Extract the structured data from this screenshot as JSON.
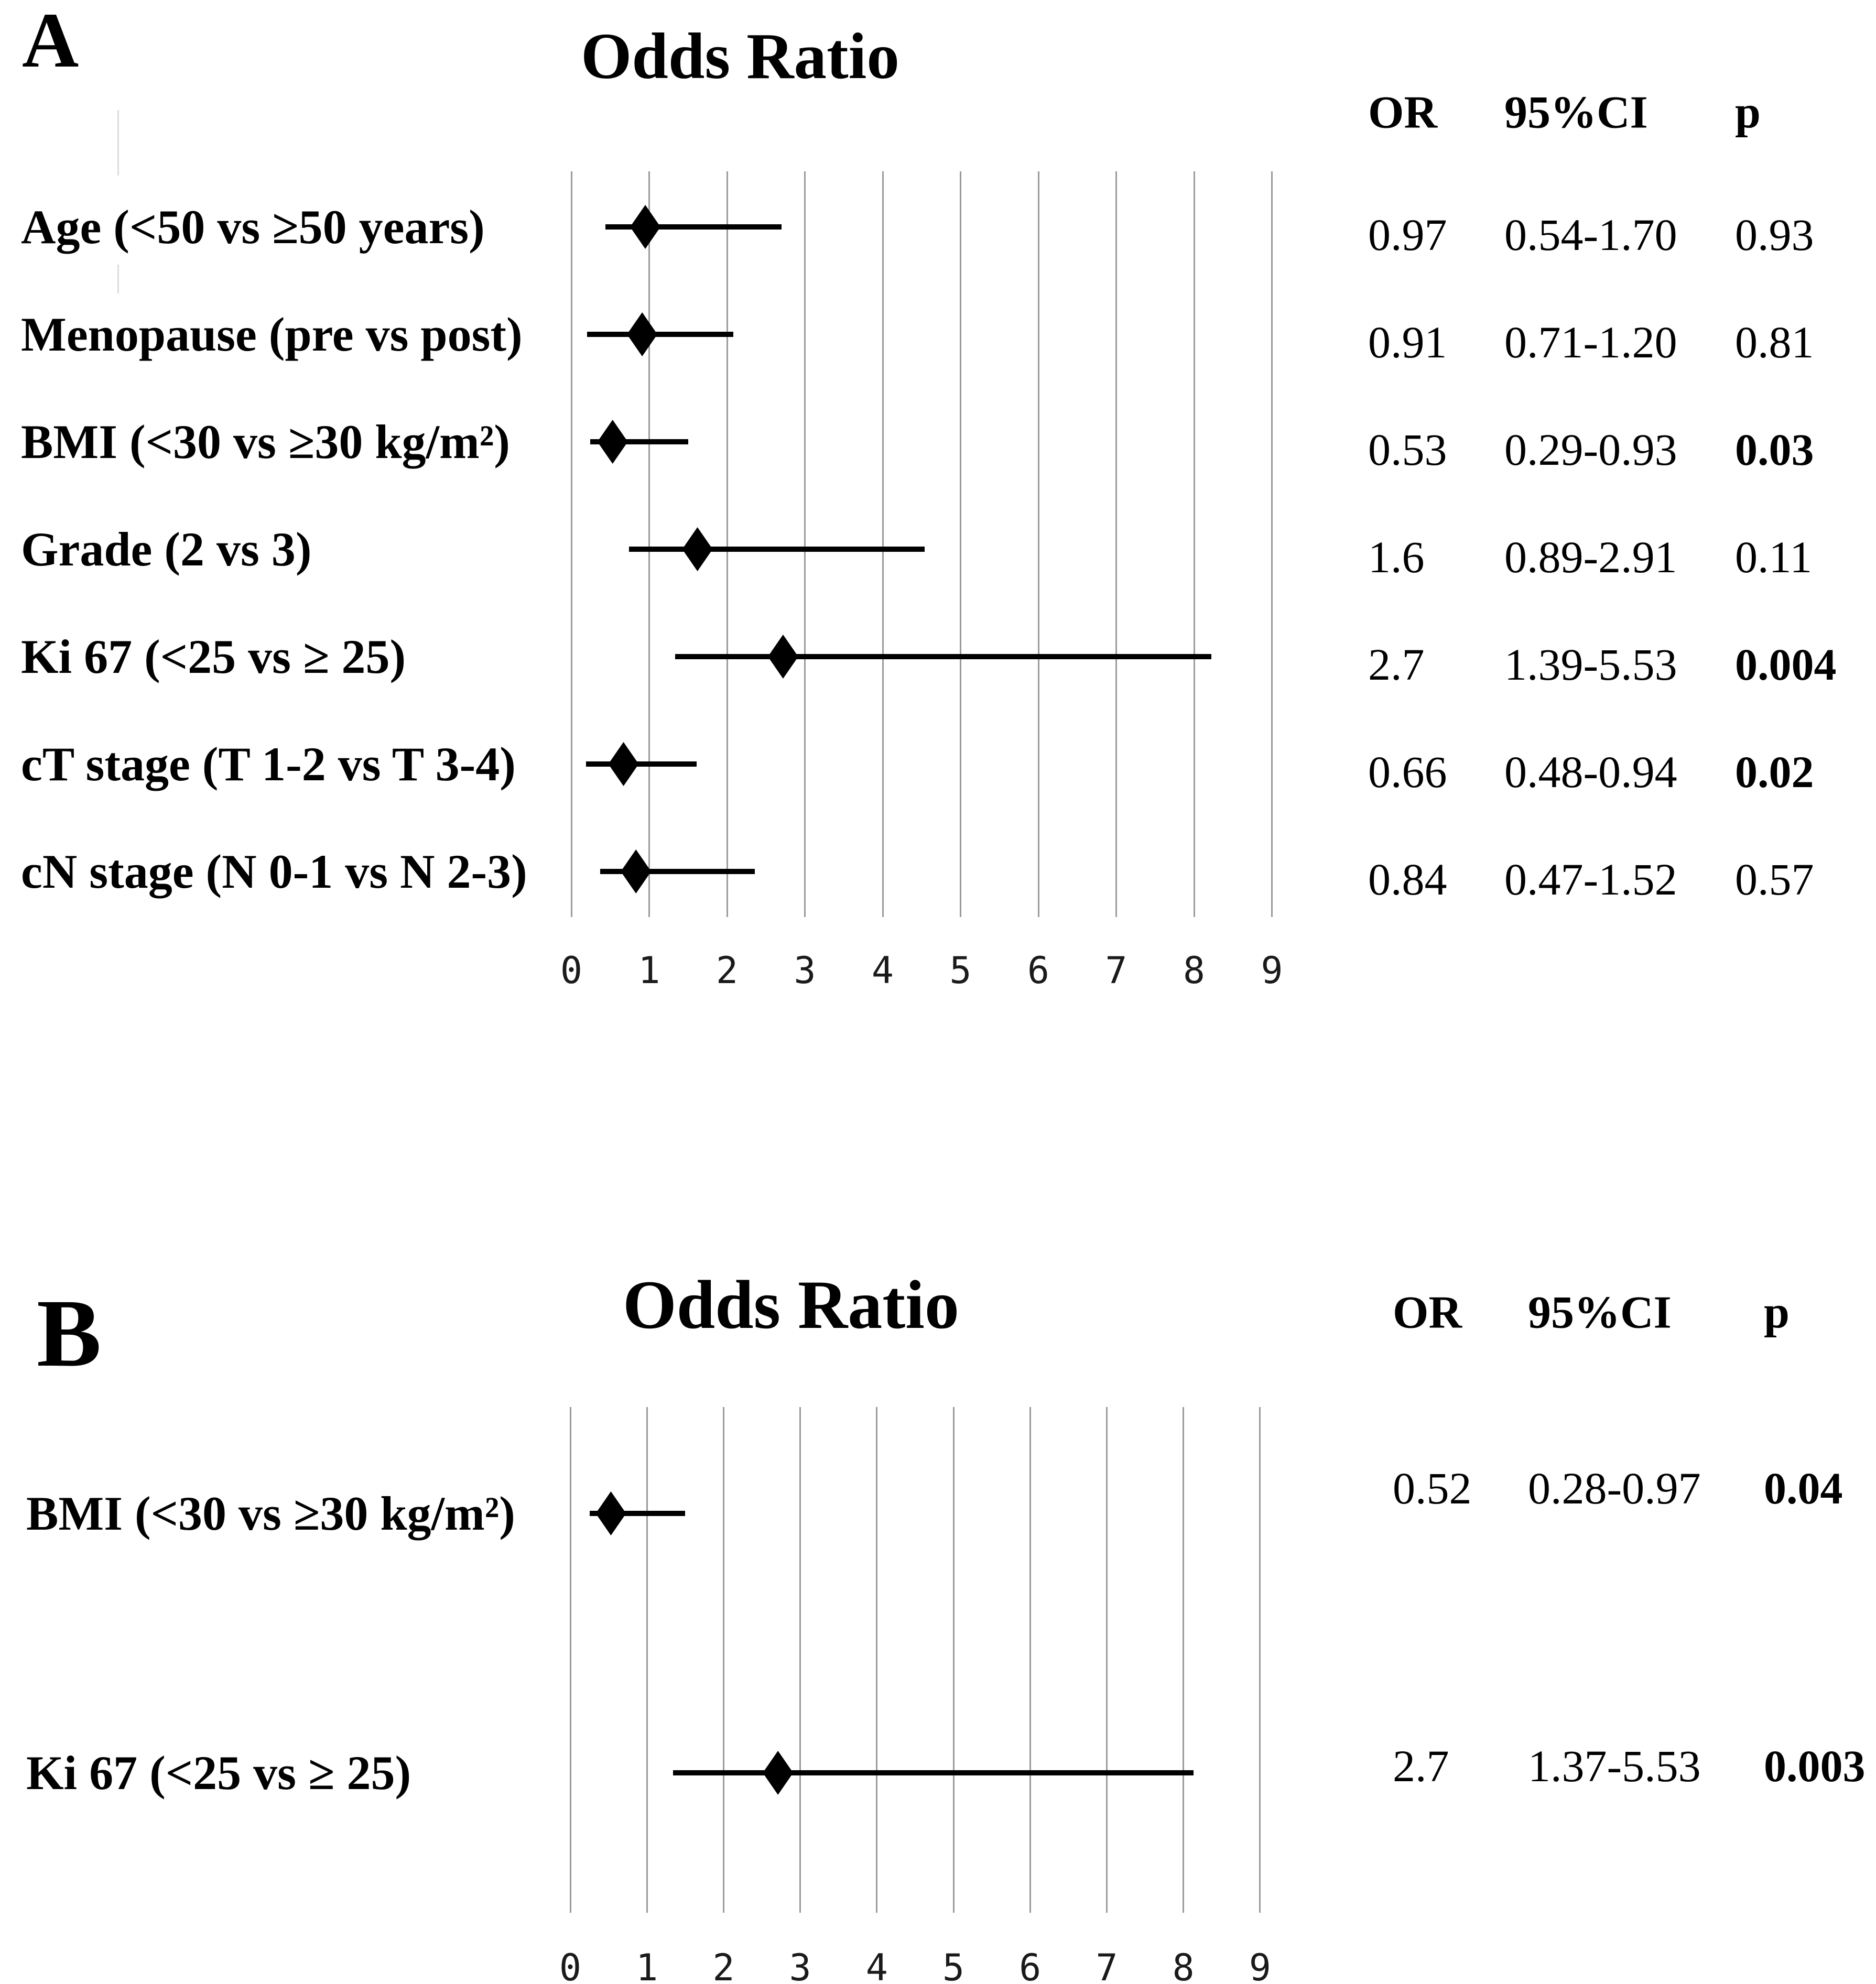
{
  "figure": {
    "background": "#ffffff"
  },
  "colors": {
    "diamond": "#000000",
    "ci_line": "#000000",
    "gridline": "#9b9b9b",
    "text": "#000000",
    "axis_text": "#1a1a1a"
  },
  "chart_data": [
    {
      "type": "scatter",
      "panel": "A",
      "title": "Odds Ratio",
      "subtype": "forest-plot-horizontal-ci",
      "xlabel": "",
      "xlim": [
        0,
        9
      ],
      "xticks": [
        "0",
        "1",
        "2",
        "3",
        "4",
        "5",
        "6",
        "7",
        "8",
        "9"
      ],
      "grid": true,
      "legend": "none",
      "categories": [
        "Age (<50 vs ≥50 years)",
        "Menopause (pre vs post)",
        "BMI (<30 vs ≥30 kg/m²)",
        "Grade (2 vs 3)",
        "Ki 67 (<25 vs ≥ 25)",
        "cT stage (T 1-2 vs T 3-4)",
        "cN stage (N 0-1 vs N 2-3)"
      ],
      "series": [
        {
          "name": "Odds ratio point estimate with CI whiskers (as drawn)",
          "x": [
            0.95,
            0.91,
            0.53,
            1.62,
            2.72,
            0.67,
            0.83
          ],
          "ci_low": [
            0.44,
            0.2,
            0.24,
            0.74,
            1.33,
            0.19,
            0.37
          ],
          "ci_high": [
            2.7,
            2.08,
            1.5,
            4.54,
            8.22,
            1.61,
            2.36
          ]
        }
      ],
      "table": {
        "headers": [
          "OR",
          "95%CI",
          "p"
        ],
        "rows": [
          [
            "0.97",
            "0.54-1.70",
            "0.93"
          ],
          [
            "0.91",
            "0.71-1.20",
            "0.81"
          ],
          [
            "0.53",
            "0.29-0.93",
            "0.03"
          ],
          [
            "1.6",
            "0.89-2.91",
            "0.11"
          ],
          [
            "2.7",
            "1.39-5.53",
            "0.004"
          ],
          [
            "0.66",
            "0.48-0.94",
            "0.02"
          ],
          [
            "0.84",
            "0.47-1.52",
            "0.57"
          ]
        ],
        "bold_p": [
          false,
          false,
          true,
          false,
          true,
          true,
          false
        ]
      }
    },
    {
      "type": "scatter",
      "panel": "B",
      "title": "Odds Ratio",
      "subtype": "forest-plot-horizontal-ci",
      "xlabel": "",
      "xlim": [
        0,
        9
      ],
      "xticks": [
        "0",
        "1",
        "2",
        "3",
        "4",
        "5",
        "6",
        "7",
        "8",
        "9"
      ],
      "grid": true,
      "legend": "none",
      "categories": [
        "BMI (<30 vs ≥30 kg/m²)",
        "Ki 67 (<25 vs ≥ 25)"
      ],
      "series": [
        {
          "name": "Odds ratio point estimate with CI whiskers (as drawn)",
          "x": [
            0.53,
            2.71
          ],
          "ci_low": [
            0.25,
            1.34
          ],
          "ci_high": [
            1.5,
            8.13
          ]
        }
      ],
      "table": {
        "headers": [
          "OR",
          "95%CI",
          "p"
        ],
        "rows": [
          [
            "0.52",
            "0.28-0.97",
            "0.04"
          ],
          [
            "2.7",
            "1.37-5.53",
            "0.003"
          ]
        ],
        "bold_p": [
          true,
          true
        ]
      }
    }
  ]
}
